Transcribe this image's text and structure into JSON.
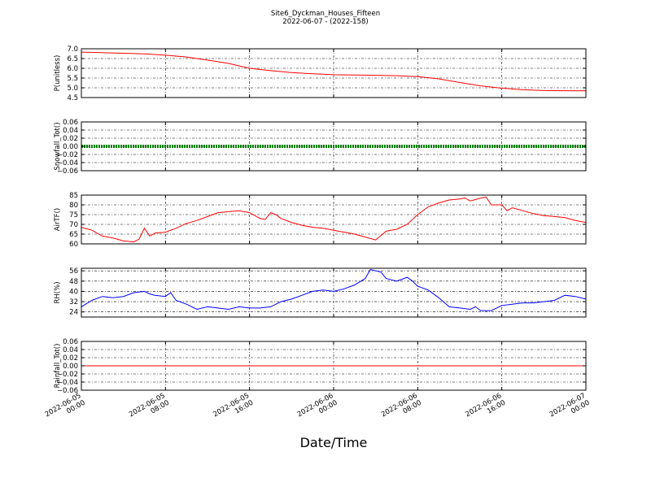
{
  "figure": {
    "title": "Site6_Dyckman_Houses_Fifteen",
    "subtitle": "2022-06-07 - (2022-158)",
    "xlabel": "Date/Time",
    "x_tick_labels": [
      [
        "2022-06-05",
        "00:00"
      ],
      [
        "2022-06-05",
        "08:00"
      ],
      [
        "2022-06-05",
        "16:00"
      ],
      [
        "2022-06-06",
        "00:00"
      ],
      [
        "2022-06-06",
        "08:00"
      ],
      [
        "2022-06-06",
        "16:00"
      ],
      [
        "2022-06-07",
        "00:00"
      ]
    ]
  },
  "chart_data": [
    {
      "type": "line",
      "ylabel": "P(unitless)",
      "ylim": [
        4.5,
        7.0
      ],
      "yticks": [
        "7.0",
        "6.5",
        "6.0",
        "5.5",
        "5.0",
        "4.5"
      ],
      "ytick_values": [
        7.0,
        6.5,
        6.0,
        5.5,
        5.0,
        4.5
      ],
      "grid": true,
      "color": "#ff0000",
      "x_hours": [
        0,
        2,
        4,
        6,
        8,
        10,
        12,
        14,
        16,
        18,
        20,
        22,
        24,
        26,
        28,
        30,
        32,
        34,
        36,
        38,
        40,
        42,
        44,
        46,
        48
      ],
      "values": [
        6.83,
        6.8,
        6.77,
        6.74,
        6.67,
        6.58,
        6.42,
        6.25,
        6.0,
        5.88,
        5.78,
        5.72,
        5.67,
        5.66,
        5.64,
        5.62,
        5.57,
        5.46,
        5.27,
        5.1,
        4.98,
        4.9,
        4.86,
        4.85,
        4.84
      ]
    },
    {
      "type": "line",
      "ylabel": "Snowfall_Tot()",
      "ylim": [
        -0.06,
        0.06
      ],
      "yticks": [
        "0.06",
        "0.04",
        "0.02",
        "0.00",
        "−0.02",
        "−0.04",
        "−0.06"
      ],
      "ytick_values": [
        0.06,
        0.04,
        0.02,
        0.0,
        -0.02,
        -0.04,
        -0.06
      ],
      "grid": true,
      "color": "#008000",
      "marker": "point",
      "x_hours": [
        0,
        48
      ],
      "values": [
        0.0,
        0.0
      ]
    },
    {
      "type": "line",
      "ylabel": "AirTF()",
      "ylim": [
        60,
        85
      ],
      "yticks": [
        "85",
        "80",
        "75",
        "70",
        "65",
        "60"
      ],
      "ytick_values": [
        85,
        80,
        75,
        70,
        65,
        60
      ],
      "grid": true,
      "color": "#ff0000",
      "x_hours": [
        0,
        1,
        2,
        3,
        4,
        5,
        5.5,
        6,
        6.5,
        7,
        8,
        9,
        10,
        11,
        12,
        13,
        14,
        15,
        16,
        17,
        17.5,
        18,
        18.5,
        19,
        20,
        21,
        22,
        23,
        24,
        25,
        26,
        27,
        28,
        29,
        30,
        31,
        32,
        33,
        34,
        35,
        36,
        36.5,
        37,
        38,
        38.5,
        39,
        40,
        40.5,
        41,
        42,
        43,
        44,
        45,
        46,
        47,
        48
      ],
      "values": [
        68.5,
        67,
        64,
        63,
        61.5,
        61,
        62.5,
        68,
        64,
        65.5,
        66,
        68,
        70.5,
        72,
        74,
        76,
        76.5,
        77,
        76,
        73,
        72.5,
        76,
        75,
        73,
        71,
        69.5,
        68.5,
        68,
        67,
        66,
        65,
        63.5,
        62,
        66.5,
        67.5,
        70,
        75,
        79,
        81,
        82.5,
        83,
        83.5,
        82,
        83.5,
        84,
        80,
        80,
        77,
        78.5,
        77,
        75.5,
        74.5,
        74,
        73.5,
        72,
        71
      ]
    },
    {
      "type": "line",
      "ylabel": "RH(%)",
      "ylim": [
        20,
        58
      ],
      "yticks": [
        "56",
        "48",
        "40",
        "32",
        "24"
      ],
      "ytick_values": [
        56,
        48,
        40,
        32,
        24
      ],
      "grid": true,
      "color": "#0000ff",
      "x_hours": [
        0,
        1,
        2,
        3,
        4,
        5,
        6,
        6.5,
        7,
        8,
        8.5,
        9,
        10,
        11,
        12,
        13,
        14,
        15,
        16,
        17,
        18,
        19,
        20,
        21,
        22,
        23,
        24,
        25,
        26,
        27,
        27.5,
        28,
        28.5,
        29,
        30,
        31,
        31.5,
        32,
        33,
        34,
        35,
        36,
        37,
        37.5,
        38,
        39,
        40,
        41,
        42,
        43,
        44,
        45,
        46,
        47,
        48
      ],
      "values": [
        28,
        33,
        36,
        35,
        36,
        39,
        40,
        38,
        37,
        36,
        39,
        33,
        30,
        26,
        28,
        27,
        26,
        28,
        27,
        27,
        28,
        32,
        34,
        37,
        40,
        41,
        40,
        42,
        45,
        50,
        57,
        56,
        55,
        50,
        48,
        51,
        48,
        44,
        41,
        35,
        28,
        27,
        26,
        28,
        25,
        25,
        29,
        30,
        31,
        31,
        32,
        33,
        37,
        36,
        34
      ]
    },
    {
      "type": "line",
      "ylabel": "Rainfall_Tot()",
      "ylim": [
        -0.06,
        0.06
      ],
      "yticks": [
        "0.06",
        "0.04",
        "0.02",
        "0.00",
        "−0.02",
        "−0.04",
        "−0.06"
      ],
      "ytick_values": [
        0.06,
        0.04,
        0.02,
        0.0,
        -0.02,
        -0.04,
        -0.06
      ],
      "grid": true,
      "color": "#ff0000",
      "x_hours": [
        0,
        48
      ],
      "values": [
        0.0,
        0.0
      ]
    }
  ]
}
